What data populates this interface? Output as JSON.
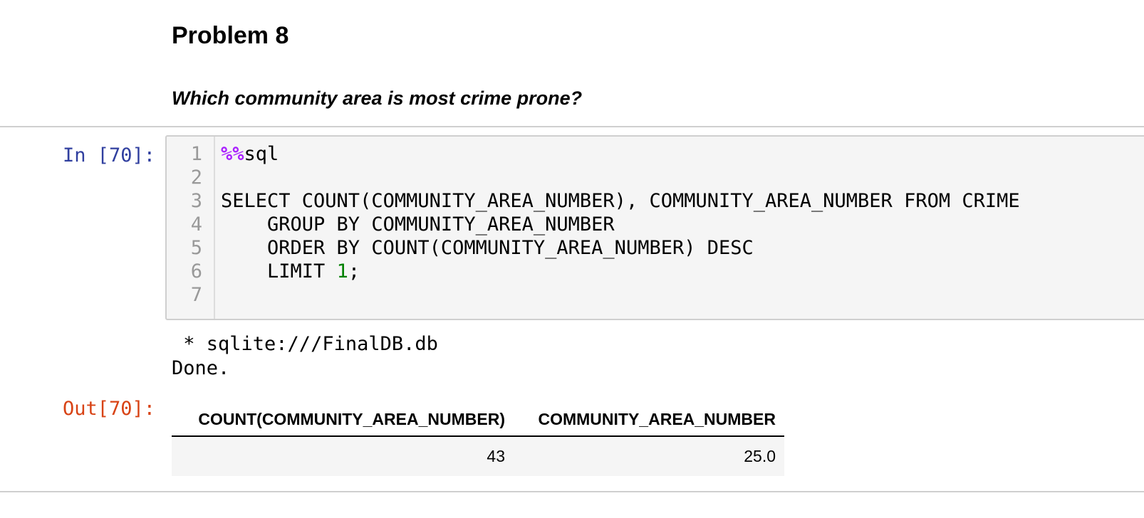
{
  "markdown": {
    "title": "Problem 8",
    "question": "Which community area is most crime prone?"
  },
  "input_prompt": "In [70]:",
  "output_prompt": "Out[70]:",
  "code": {
    "line_numbers": [
      "1",
      "2",
      "3",
      "4",
      "5",
      "6",
      "7"
    ],
    "lines": [
      {
        "magic": "%%",
        "text": "sql"
      },
      {
        "text": ""
      },
      {
        "text": "SELECT COUNT(COMMUNITY_AREA_NUMBER), COMMUNITY_AREA_NUMBER FROM CRIME"
      },
      {
        "text": "    GROUP BY COMMUNITY_AREA_NUMBER"
      },
      {
        "text": "    ORDER BY COUNT(COMMUNITY_AREA_NUMBER) DESC"
      },
      {
        "text": "    LIMIT ",
        "number": "1",
        "suffix": ";"
      },
      {
        "text": ""
      }
    ]
  },
  "stdout": {
    "connection": " * sqlite:///FinalDB.db",
    "status": "Done."
  },
  "result_table": {
    "headers": [
      "COUNT(COMMUNITY_AREA_NUMBER)",
      "COMMUNITY_AREA_NUMBER"
    ],
    "rows": [
      [
        "43",
        "25.0"
      ]
    ]
  },
  "colors": {
    "in_prompt": "#303f9f",
    "out_prompt": "#d84315",
    "magic": "#aa22ff",
    "number": "#008000",
    "editor_bg": "#f5f5f5"
  }
}
